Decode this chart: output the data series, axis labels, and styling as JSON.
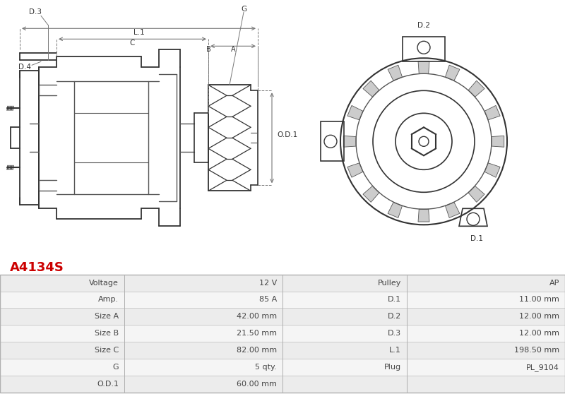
{
  "title": "A4134S",
  "title_color": "#cc0000",
  "background_color": "#ffffff",
  "table_rows": [
    [
      "Voltage",
      "12 V",
      "Pulley",
      "AP"
    ],
    [
      "Amp.",
      "85 A",
      "D.1",
      "11.00 mm"
    ],
    [
      "Size A",
      "42.00 mm",
      "D.2",
      "12.00 mm"
    ],
    [
      "Size B",
      "21.50 mm",
      "D.3",
      "12.00 mm"
    ],
    [
      "Size C",
      "82.00 mm",
      "L.1",
      "198.50 mm"
    ],
    [
      "G",
      "5 qty.",
      "Plug",
      "PL_9104"
    ],
    [
      "O.D.1",
      "60.00 mm",
      "",
      ""
    ]
  ],
  "line_color": "#555555",
  "dark_color": "#333333",
  "dim_color": "#777777"
}
